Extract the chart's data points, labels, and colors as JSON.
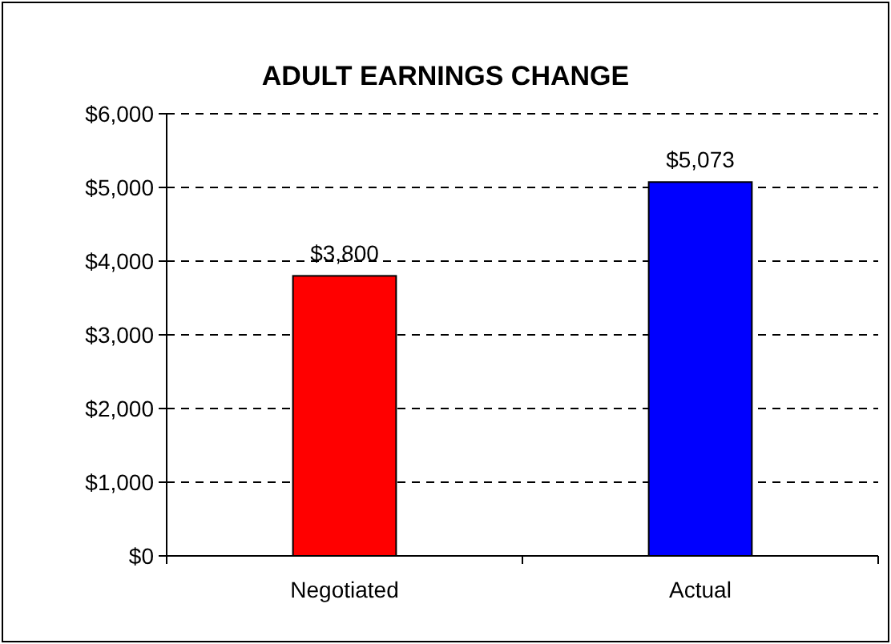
{
  "chart_data": {
    "type": "bar",
    "title": "ADULT EARNINGS CHANGE",
    "categories": [
      "Negotiated",
      "Actual"
    ],
    "values": [
      3800,
      5073
    ],
    "colors": [
      "#ff0000",
      "#0000ff"
    ],
    "value_labels": [
      "$3,800",
      "$5,073"
    ],
    "ylim": [
      0,
      6000
    ],
    "yticks": [
      {
        "value": 0,
        "label": "$0"
      },
      {
        "value": 1000,
        "label": "$1,000"
      },
      {
        "value": 2000,
        "label": "$2,000"
      },
      {
        "value": 3000,
        "label": "$3,000"
      },
      {
        "value": 4000,
        "label": "$4,000"
      },
      {
        "value": 5000,
        "label": "$5,000"
      },
      {
        "value": 6000,
        "label": "$6,000"
      }
    ],
    "grid": "y"
  }
}
